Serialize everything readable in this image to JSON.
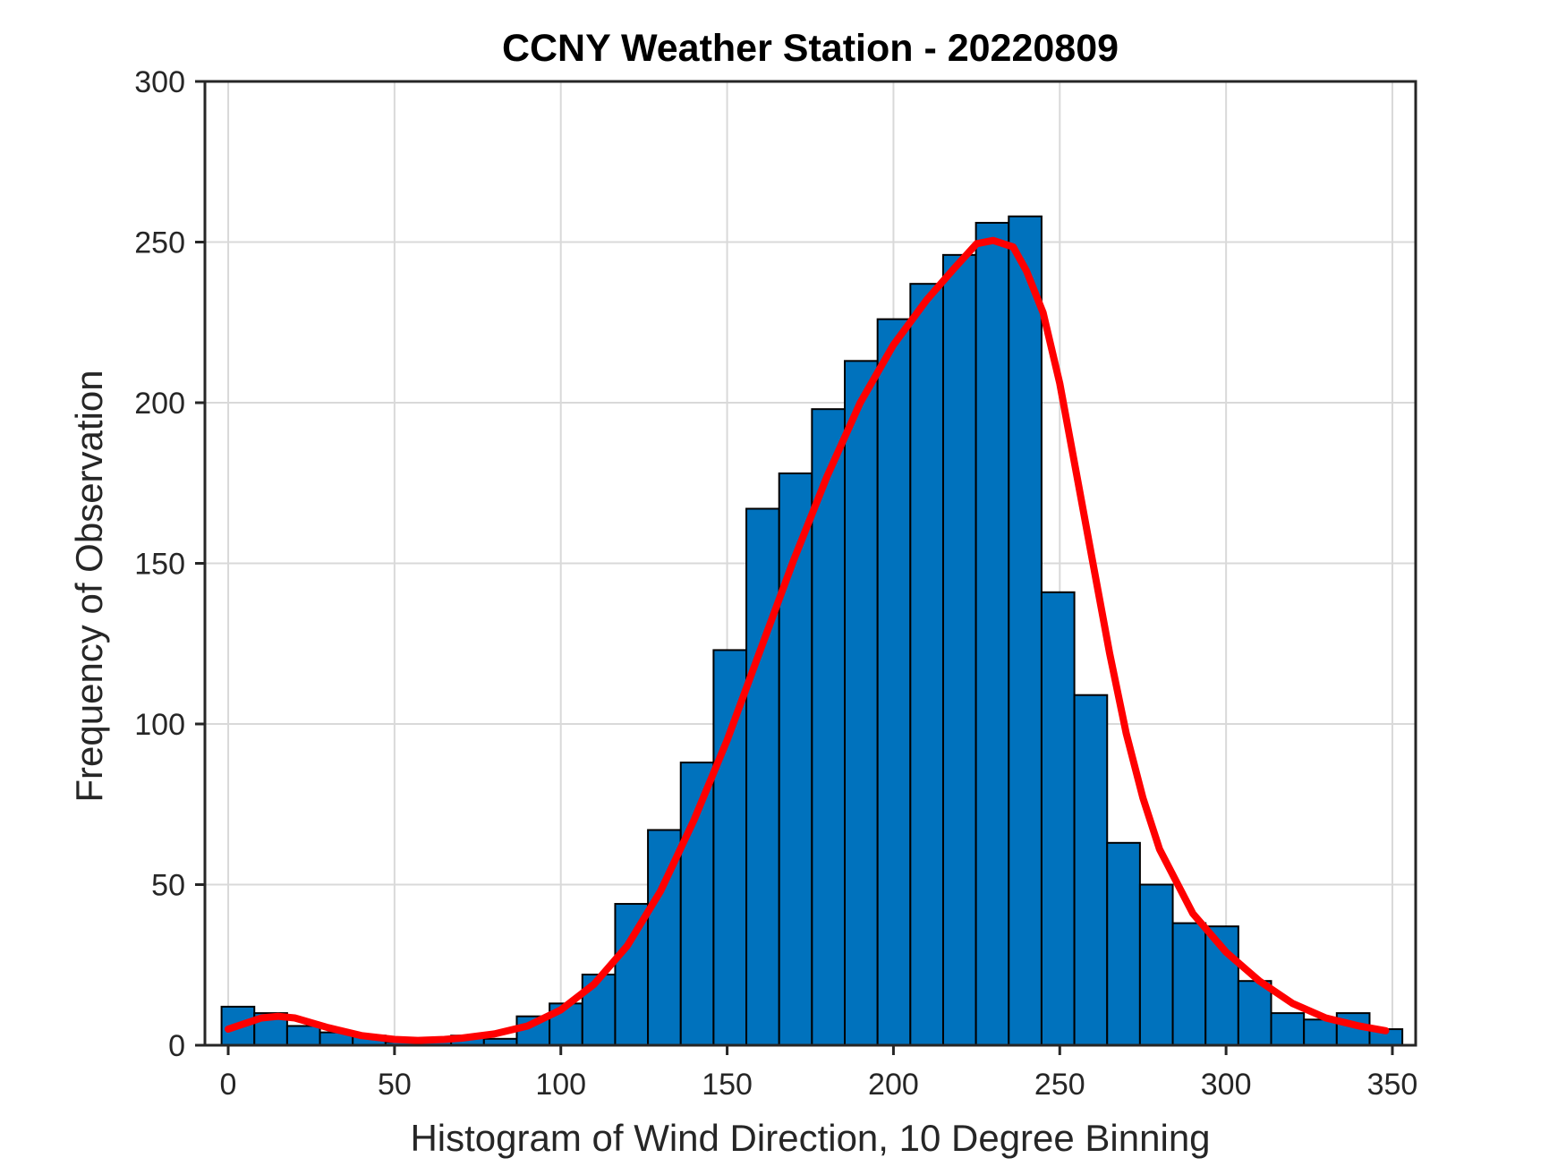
{
  "title": "CCNY Weather Station - 20220809",
  "chart_data": {
    "type": "bar",
    "title": "CCNY Weather Station - 20220809",
    "xlabel": "Histogram of Wind Direction, 10 Degree Binning",
    "ylabel": "Frequency of Observation",
    "xlim": [
      -7,
      357
    ],
    "ylim": [
      0,
      300
    ],
    "xticks": [
      0,
      50,
      100,
      150,
      200,
      250,
      300,
      350
    ],
    "yticks": [
      0,
      50,
      100,
      150,
      200,
      250,
      300
    ],
    "grid": true,
    "legend": null,
    "bin_width_degrees": 10,
    "bin_centers": [
      0,
      10,
      20,
      30,
      40,
      50,
      60,
      70,
      80,
      90,
      100,
      110,
      120,
      130,
      140,
      150,
      160,
      170,
      180,
      190,
      200,
      210,
      220,
      230,
      240,
      250,
      260,
      270,
      280,
      290,
      300,
      310,
      320,
      330,
      340,
      350
    ],
    "values": [
      12,
      10,
      6,
      4,
      3,
      1,
      2,
      3,
      2,
      9,
      13,
      22,
      44,
      67,
      88,
      123,
      167,
      178,
      198,
      213,
      226,
      237,
      246,
      256,
      258,
      141,
      109,
      63,
      50,
      38,
      37,
      20,
      10,
      8,
      10,
      5
    ],
    "bar_span": [
      -2,
      353
    ],
    "fit_curve": {
      "x": [
        0,
        10,
        15,
        20,
        30,
        40,
        50,
        57,
        65,
        70,
        80,
        90,
        100,
        110,
        120,
        130,
        140,
        150,
        160,
        170,
        180,
        190,
        200,
        210,
        218,
        225,
        230,
        236,
        240,
        245,
        250,
        255,
        260,
        265,
        270,
        275,
        280,
        290,
        300,
        310,
        320,
        330,
        340,
        348
      ],
      "y": [
        5,
        8.5,
        9,
        8.5,
        5.5,
        3,
        1.8,
        1.5,
        1.8,
        2.2,
        3.5,
        6,
        11,
        19,
        31,
        48,
        70,
        95,
        123,
        151,
        177,
        200,
        218,
        232,
        241.5,
        249.5,
        250.5,
        248.5,
        241,
        228,
        206,
        178,
        150,
        122,
        97,
        77,
        61,
        41,
        29,
        20,
        13,
        8.5,
        6,
        4.5
      ]
    },
    "colors": {
      "bar_fill": "#0072BD",
      "bar_edge": "#000000",
      "curve": "#FF0000",
      "grid": "#D9D9D9",
      "axis": "#262626",
      "text": "#262626"
    }
  }
}
